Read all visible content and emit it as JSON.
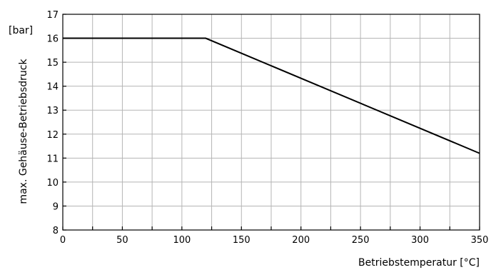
{
  "chart_data": {
    "type": "line",
    "xlabel": "Betriebstemperatur  [°C]",
    "ylabel": "max. Gehäuse-Betriebsdruck",
    "y_unit": "[bar]",
    "xlim": [
      0,
      350
    ],
    "ylim": [
      8,
      17
    ],
    "x_ticks": [
      0,
      50,
      100,
      150,
      200,
      250,
      300,
      350
    ],
    "x_minor_step": 25,
    "y_ticks": [
      8,
      9,
      10,
      11,
      12,
      13,
      14,
      15,
      16,
      17
    ],
    "grid": true,
    "legend": "none",
    "series": [
      {
        "x": [
          0,
          120,
          350
        ],
        "y": [
          16,
          16,
          11.2
        ],
        "color": "#000000"
      }
    ]
  }
}
